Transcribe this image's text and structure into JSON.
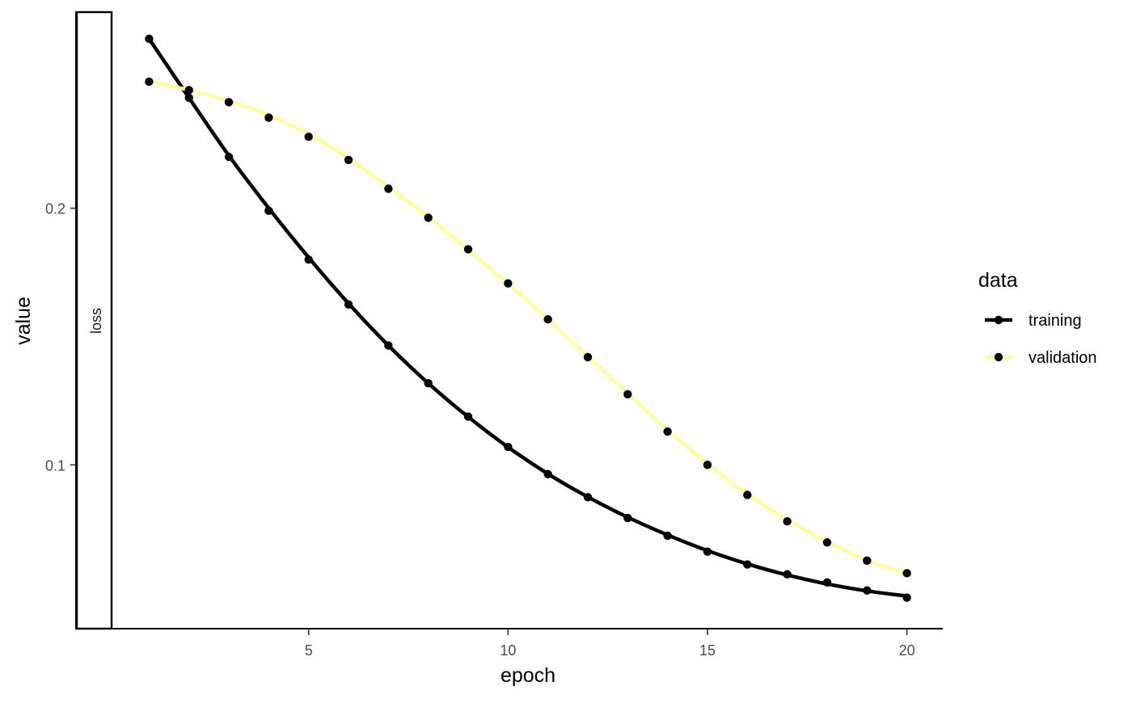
{
  "chart_data": {
    "type": "line",
    "facet_label": "loss",
    "xlabel": "epoch",
    "ylabel": "value",
    "xlim": [
      0.1,
      20.9
    ],
    "ylim": [
      0.0362,
      0.2767
    ],
    "x_ticks": [
      5,
      10,
      15,
      20
    ],
    "x_tick_labels": [
      "5",
      "10",
      "15",
      "20"
    ],
    "y_ticks": [
      0.1,
      0.2
    ],
    "y_tick_labels": [
      "0.1",
      "0.2"
    ],
    "grid": false,
    "legend": {
      "title": "data",
      "position": "right"
    },
    "x": [
      1,
      2,
      3,
      4,
      5,
      6,
      7,
      8,
      9,
      10,
      11,
      12,
      13,
      14,
      15,
      16,
      17,
      18,
      19,
      20
    ],
    "series": [
      {
        "name": "training",
        "color": "#000000",
        "values": [
          0.266,
          0.243,
          0.22,
          0.199,
          0.18,
          0.1625,
          0.1465,
          0.1318,
          0.1188,
          0.107,
          0.0964,
          0.0874,
          0.0793,
          0.0724,
          0.0662,
          0.0612,
          0.0574,
          0.0542,
          0.0511,
          0.0483
        ],
        "smooth_values": [
          0.266,
          0.243,
          0.2205,
          0.2,
          0.1808,
          0.1629,
          0.1465,
          0.1318,
          0.1187,
          0.1069,
          0.0965,
          0.0875,
          0.0796,
          0.0727,
          0.0666,
          0.0614,
          0.0571,
          0.0536,
          0.0509,
          0.0489
        ]
      },
      {
        "name": "validation",
        "color": "#FFFFA0",
        "values": [
          0.2493,
          0.246,
          0.2413,
          0.2353,
          0.2278,
          0.2188,
          0.2076,
          0.1963,
          0.184,
          0.1707,
          0.1567,
          0.142,
          0.1275,
          0.113,
          0.1,
          0.0883,
          0.078,
          0.0698,
          0.0627,
          0.0578
        ],
        "smooth_values": [
          0.2493,
          0.246,
          0.2417,
          0.2362,
          0.2288,
          0.2194,
          0.2083,
          0.1964,
          0.1837,
          0.1705,
          0.1566,
          0.1423,
          0.1277,
          0.1135,
          0.1003,
          0.0886,
          0.0785,
          0.0699,
          0.0629,
          0.0574
        ]
      }
    ]
  }
}
